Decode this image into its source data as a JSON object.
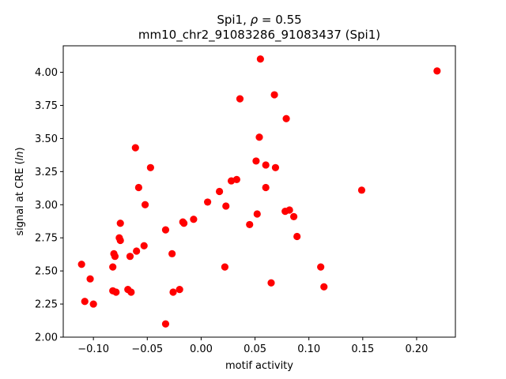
{
  "chart_data": {
    "type": "scatter",
    "title_line1_pre": "Spi1, ",
    "title_line1_rho": "ρ",
    "title_line1_post": " = 0.55",
    "title_line2": "mm10_chr2_91083286_91083437 (Spi1)",
    "xlabel": "motif activity",
    "ylabel_pre": "signal at CRE (",
    "ylabel_ital": "ln",
    "ylabel_post": ")",
    "xlim": [
      -0.128,
      0.236
    ],
    "ylim": [
      2.0,
      4.2
    ],
    "xticks": [
      -0.1,
      -0.05,
      0.0,
      0.05,
      0.1,
      0.15,
      0.2
    ],
    "xtick_labels": [
      "−0.10",
      "−0.05",
      "0.00",
      "0.05",
      "0.10",
      "0.15",
      "0.20"
    ],
    "yticks": [
      2.0,
      2.25,
      2.5,
      2.75,
      3.0,
      3.25,
      3.5,
      3.75,
      4.0
    ],
    "ytick_labels": [
      "2.00",
      "2.25",
      "2.50",
      "2.75",
      "3.00",
      "3.25",
      "3.50",
      "3.75",
      "4.00"
    ],
    "marker_color": "#ff0000",
    "grid": false,
    "points": [
      [
        -0.111,
        2.55
      ],
      [
        -0.108,
        2.27
      ],
      [
        -0.103,
        2.44
      ],
      [
        -0.1,
        2.25
      ],
      [
        -0.082,
        2.53
      ],
      [
        -0.081,
        2.63
      ],
      [
        -0.08,
        2.61
      ],
      [
        -0.082,
        2.35
      ],
      [
        -0.079,
        2.34
      ],
      [
        -0.076,
        2.75
      ],
      [
        -0.075,
        2.73
      ],
      [
        -0.075,
        2.86
      ],
      [
        -0.068,
        2.36
      ],
      [
        -0.066,
        2.61
      ],
      [
        -0.065,
        2.34
      ],
      [
        -0.061,
        3.43
      ],
      [
        -0.06,
        2.65
      ],
      [
        -0.058,
        3.13
      ],
      [
        -0.053,
        2.69
      ],
      [
        -0.052,
        3.0
      ],
      [
        -0.047,
        3.28
      ],
      [
        -0.033,
        2.81
      ],
      [
        -0.033,
        2.1
      ],
      [
        -0.027,
        2.63
      ],
      [
        -0.026,
        2.34
      ],
      [
        -0.02,
        2.36
      ],
      [
        -0.017,
        2.87
      ],
      [
        -0.016,
        2.86
      ],
      [
        -0.007,
        2.89
      ],
      [
        0.006,
        3.02
      ],
      [
        0.017,
        3.1
      ],
      [
        0.022,
        2.53
      ],
      [
        0.023,
        2.99
      ],
      [
        0.028,
        3.18
      ],
      [
        0.033,
        3.19
      ],
      [
        0.036,
        3.8
      ],
      [
        0.045,
        2.85
      ],
      [
        0.051,
        3.33
      ],
      [
        0.052,
        2.93
      ],
      [
        0.054,
        3.51
      ],
      [
        0.055,
        4.1
      ],
      [
        0.06,
        3.3
      ],
      [
        0.06,
        3.13
      ],
      [
        0.065,
        2.41
      ],
      [
        0.068,
        3.83
      ],
      [
        0.069,
        3.28
      ],
      [
        0.078,
        2.95
      ],
      [
        0.079,
        3.65
      ],
      [
        0.082,
        2.96
      ],
      [
        0.086,
        2.91
      ],
      [
        0.089,
        2.76
      ],
      [
        0.111,
        2.53
      ],
      [
        0.114,
        2.38
      ],
      [
        0.149,
        3.11
      ],
      [
        0.219,
        4.01
      ]
    ]
  }
}
